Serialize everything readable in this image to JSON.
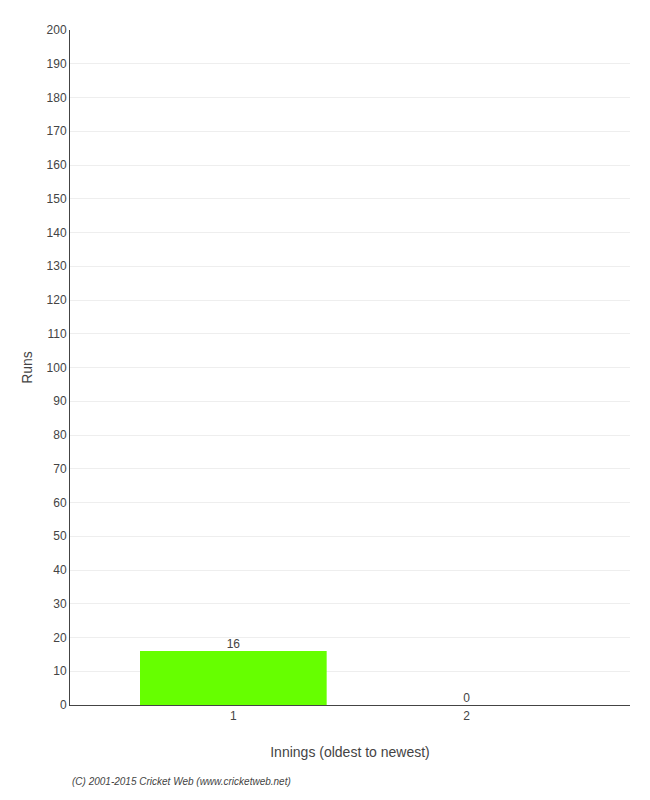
{
  "chart_data": {
    "type": "bar",
    "x": [
      1,
      2
    ],
    "values": [
      16,
      0
    ],
    "color": "#66ff00",
    "xlabel": "Innings (oldest to newest)",
    "ylabel": "Runs",
    "xlim": [
      0.3,
      2.7
    ],
    "xticks": [
      1,
      2
    ],
    "ylim": [
      0,
      200
    ],
    "yticks": [
      0,
      10,
      20,
      30,
      40,
      50,
      60,
      70,
      80,
      90,
      100,
      110,
      120,
      130,
      140,
      150,
      160,
      170,
      180,
      190,
      200
    ],
    "grid": true,
    "data_labels": true,
    "annotations": [
      "(C) 2001-2015 Cricket Web (www.cricketweb.net)"
    ]
  }
}
